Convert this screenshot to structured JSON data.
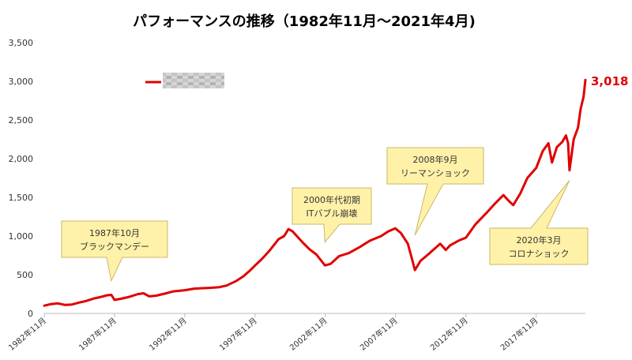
{
  "chart_data": {
    "type": "line",
    "title": "パフォーマンスの推移（1982年11月～2021年4月)",
    "xlabel": "",
    "ylabel": "",
    "ylim": [
      0,
      3500
    ],
    "yticks": [
      0,
      500,
      1000,
      1500,
      2000,
      2500,
      3000,
      3500
    ],
    "ytick_labels": [
      "0",
      "500",
      "1,000",
      "1,500",
      "2,000",
      "2,500",
      "3,000",
      "3,500"
    ],
    "xlim": [
      1982.83,
      2021.33
    ],
    "xtick_labels": [
      "1982年11月",
      "1987年11月",
      "1992年11月",
      "1997年11月",
      "2002年11月",
      "2007年11月",
      "2012年11月",
      "2017年11月"
    ],
    "xtick_values": [
      1982.83,
      1987.83,
      1992.83,
      1997.83,
      2002.83,
      2007.83,
      2012.83,
      2017.83
    ],
    "grid": false,
    "legend": "top-left",
    "series_color": "#e00000",
    "series": [
      {
        "x": [
          1982.83,
          1983.3,
          1983.8,
          1984.3,
          1984.8,
          1985.3,
          1985.8,
          1986.3,
          1986.8,
          1987.3,
          1987.6,
          1987.83,
          1988.3,
          1988.8,
          1989.5,
          1989.9,
          1990.3,
          1990.8,
          1991.5,
          1992.0,
          1992.83,
          1993.5,
          1994.5,
          1995.3,
          1995.8,
          1996.5,
          1997.0,
          1997.5,
          1997.83,
          1998.3,
          1998.6,
          1998.9,
          1999.5,
          1999.9,
          2000.2,
          2000.5,
          2000.8,
          2001.2,
          2001.7,
          2002.2,
          2002.8,
          2003.2,
          2003.8,
          2004.5,
          2005.3,
          2006.0,
          2006.8,
          2007.3,
          2007.8,
          2008.2,
          2008.7,
          2009.0,
          2009.2,
          2009.6,
          2010.0,
          2010.5,
          2011.0,
          2011.4,
          2011.7,
          2012.3,
          2012.83,
          2013.5,
          2014.3,
          2014.9,
          2015.5,
          2015.9,
          2016.2,
          2016.7,
          2017.2,
          2017.83,
          2018.3,
          2018.7,
          2018.95,
          2019.3,
          2019.7,
          2019.95,
          2020.1,
          2020.2,
          2020.5,
          2020.8,
          2021.0,
          2021.2,
          2021.33
        ],
        "values": [
          100,
          120,
          130,
          110,
          115,
          140,
          160,
          190,
          210,
          235,
          240,
          175,
          190,
          210,
          250,
          260,
          220,
          230,
          260,
          285,
          300,
          320,
          330,
          340,
          360,
          420,
          480,
          560,
          620,
          700,
          760,
          820,
          960,
          1000,
          1090,
          1060,
          1000,
          920,
          830,
          760,
          620,
          640,
          740,
          780,
          860,
          940,
          1000,
          1060,
          1100,
          1040,
          900,
          700,
          560,
          680,
          740,
          820,
          900,
          820,
          880,
          940,
          980,
          1150,
          1300,
          1420,
          1530,
          1450,
          1400,
          1550,
          1750,
          1880,
          2100,
          2200,
          1950,
          2150,
          2220,
          2300,
          2200,
          1850,
          2250,
          2400,
          2650,
          2800,
          3018
        ]
      }
    ],
    "annotations": [
      {
        "id": "monday",
        "line1": "1987年10月",
        "line2": "ブラックマンデー",
        "tip_x": 1987.6,
        "tip_y": 420
      },
      {
        "id": "it-bubble",
        "line1": "2000年代初期",
        "line2": "ITバブル崩壊",
        "tip_x": 2002.8,
        "tip_y": 920
      },
      {
        "id": "lehman",
        "line1": "2008年9月",
        "line2": "リーマンショック",
        "tip_x": 2009.2,
        "tip_y": 1010
      },
      {
        "id": "corona",
        "line1": "2020年3月",
        "line2": "コロナショック",
        "tip_x": 2020.2,
        "tip_y": 1720
      }
    ],
    "end_label": "3,018"
  }
}
